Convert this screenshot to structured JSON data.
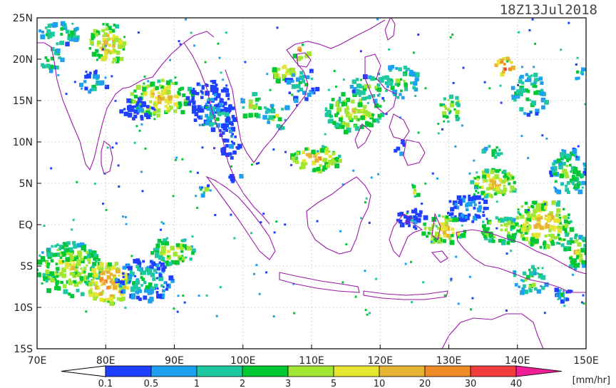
{
  "title": "18Z13Jul2018",
  "map": {
    "lon_range": [
      70,
      150
    ],
    "lat_range": [
      -15,
      25
    ],
    "x_ticks": [
      {
        "lon": 70,
        "label": "70E"
      },
      {
        "lon": 80,
        "label": "80E"
      },
      {
        "lon": 90,
        "label": "90E"
      },
      {
        "lon": 100,
        "label": "100E"
      },
      {
        "lon": 110,
        "label": "110E"
      },
      {
        "lon": 120,
        "label": "120E"
      },
      {
        "lon": 130,
        "label": "130E"
      },
      {
        "lon": 140,
        "label": "140E"
      },
      {
        "lon": 150,
        "label": "150E"
      }
    ],
    "y_ticks": [
      {
        "lat": 25,
        "label": "25N"
      },
      {
        "lat": 20,
        "label": "20N"
      },
      {
        "lat": 15,
        "label": "15N"
      },
      {
        "lat": 10,
        "label": "10N"
      },
      {
        "lat": 5,
        "label": "5N"
      },
      {
        "lat": 0,
        "label": "EQ"
      },
      {
        "lat": -5,
        "label": "5S"
      },
      {
        "lat": -10,
        "label": "10S"
      },
      {
        "lat": -15,
        "label": "15S"
      }
    ],
    "grid": "dotted",
    "coastline_color": "#9b1aa8"
  },
  "colorbar": {
    "unit": "[mm/hr]",
    "levels": [
      "0.1",
      "0.5",
      "1",
      "2",
      "3",
      "5",
      "10",
      "20",
      "30",
      "40"
    ],
    "colors": [
      "#2040ff",
      "#1ea0f0",
      "#1ec8a0",
      "#00c832",
      "#a0e632",
      "#e6e632",
      "#e6b432",
      "#f08c28",
      "#f03c3c",
      "#f01e96"
    ]
  }
}
